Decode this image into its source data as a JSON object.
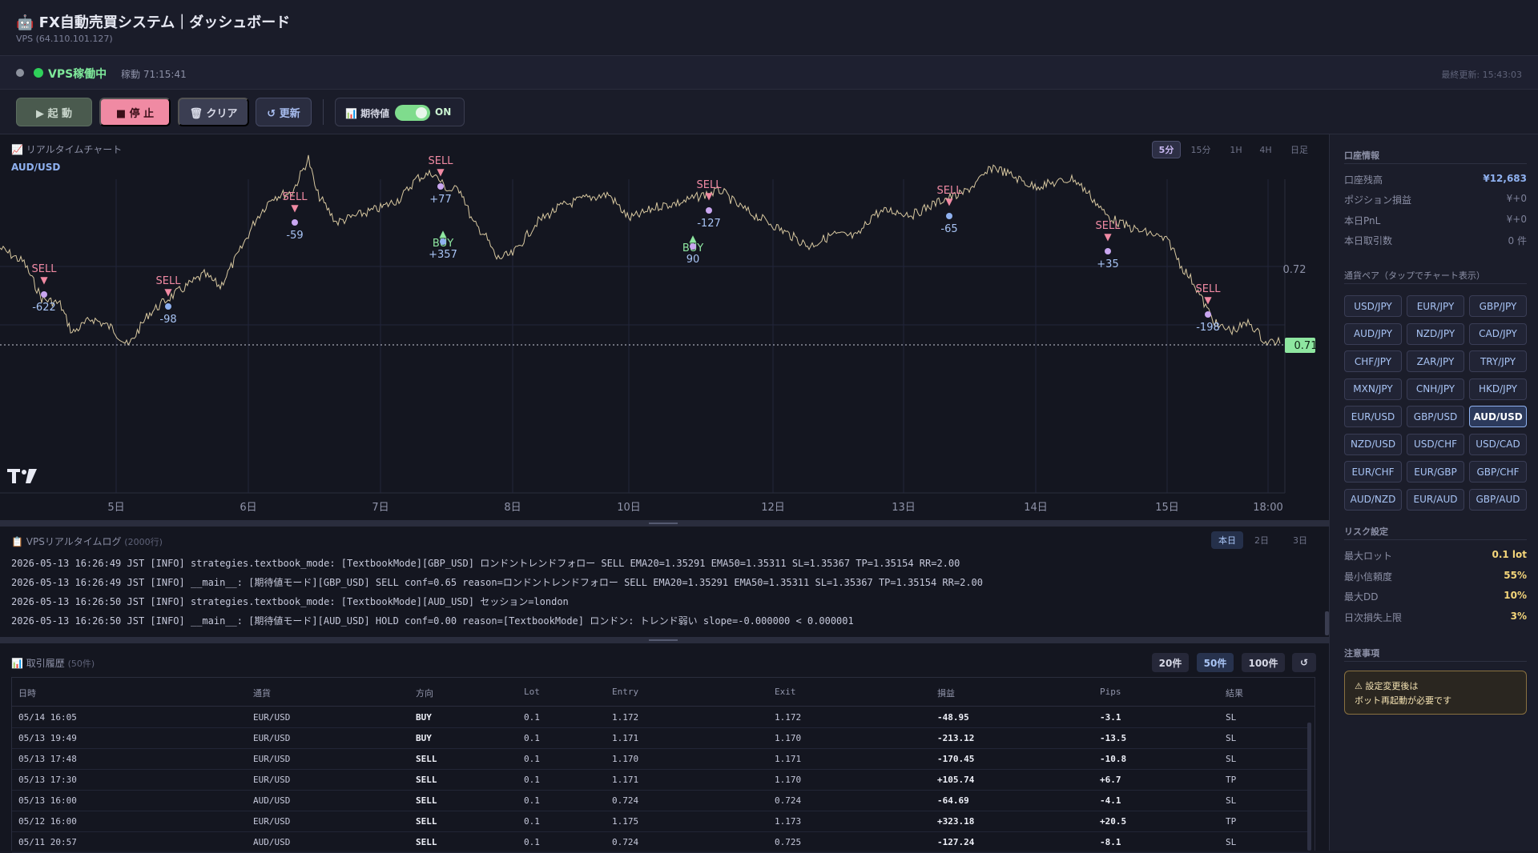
{
  "header": {
    "title": "🤖 FX自動売買システム｜ダッシュボード",
    "subtitle": "VPS (64.110.101.127)"
  },
  "status": {
    "vps_label": "VPS稼働中",
    "uptime": "稼動 71:15:41",
    "last_updated": "最終更新: 15:43:03"
  },
  "toolbar": {
    "start_label": "▶ 起 動",
    "stop_label": "■ 停 止",
    "clear_label": "🗑 クリア",
    "refresh_label": "↺ 更新",
    "ev_label": "📊 期待値",
    "ev_state": "ON"
  },
  "chart": {
    "title": "📈 リアルタイムチャート",
    "symbol": "AUD/USD",
    "timeframes": [
      "5分",
      "15分",
      "1H",
      "4H",
      "日足"
    ],
    "active_timeframe": "5分",
    "price_labels": [
      "0.72"
    ],
    "current_price": "0.71",
    "x_ticks": [
      "5日",
      "6日",
      "7日",
      "8日",
      "10日",
      "12日",
      "13日",
      "14日",
      "15日",
      "18:00"
    ],
    "markers": [
      {
        "kind": "SELL",
        "pnl": "-622"
      },
      {
        "kind": "SELL",
        "pnl": "-98"
      },
      {
        "kind": "SELL",
        "pnl": "-59"
      },
      {
        "kind": "SELL",
        "pnl": "+77"
      },
      {
        "kind": "BUY",
        "pnl": "+357"
      },
      {
        "kind": "BUY",
        "pnl": "90"
      },
      {
        "kind": "SELL",
        "pnl": "-127"
      },
      {
        "kind": "SELL",
        "pnl": "-65"
      },
      {
        "kind": "SELL",
        "pnl": "+35"
      },
      {
        "kind": "SELL",
        "pnl": "-198"
      }
    ],
    "colors": {
      "up": "#d8c8a0",
      "down": "#e893b0",
      "sell": "#f08aa3",
      "buy": "#8ee6a0",
      "price_tag": "#8ee6a0"
    }
  },
  "log": {
    "title": "📋 VPSリアルタイムログ",
    "count": "(2000行)",
    "ranges": [
      "本日",
      "2日",
      "3日"
    ],
    "active_range": "本日",
    "lines": [
      "2026-05-13 16:26:49 JST [INFO] strategies.textbook_mode: [TextbookMode][GBP_USD] ロンドントレンドフォロー SELL EMA20=1.35291 EMA50=1.35311 SL=1.35367 TP=1.35154 RR=2.00",
      "2026-05-13 16:26:49 JST [INFO] __main__: [期待値モード][GBP_USD] SELL conf=0.65 reason=ロンドントレンドフォロー SELL EMA20=1.35291 EMA50=1.35311 SL=1.35367 TP=1.35154 RR=2.00",
      "2026-05-13 16:26:50 JST [INFO] strategies.textbook_mode: [TextbookMode][AUD_USD] セッション=london",
      "2026-05-13 16:26:50 JST [INFO] __main__: [期待値モード][AUD_USD] HOLD conf=0.00 reason=[TextbookMode] ロンドン: トレンド弱い slope=-0.000000 < 0.000001"
    ]
  },
  "history": {
    "title": "📊 取引履歴",
    "count": "(50件)",
    "limits": [
      "20件",
      "50件",
      "100件",
      "↺"
    ],
    "active_limit": "50件",
    "columns": [
      "日時",
      "通貨",
      "方向",
      "Lot",
      "Entry",
      "Exit",
      "損益",
      "Pips",
      "結果"
    ],
    "rows": [
      [
        "05/14 16:05",
        "EUR/USD",
        "BUY",
        "0.1",
        "1.172",
        "1.172",
        "-48.95",
        "-3.1",
        "SL"
      ],
      [
        "05/13 19:49",
        "EUR/USD",
        "BUY",
        "0.1",
        "1.171",
        "1.170",
        "-213.12",
        "-13.5",
        "SL"
      ],
      [
        "05/13 17:48",
        "EUR/USD",
        "SELL",
        "0.1",
        "1.170",
        "1.171",
        "-170.45",
        "-10.8",
        "SL"
      ],
      [
        "05/13 17:30",
        "EUR/USD",
        "SELL",
        "0.1",
        "1.171",
        "1.170",
        "+105.74",
        "+6.7",
        "TP"
      ],
      [
        "05/13 16:00",
        "AUD/USD",
        "SELL",
        "0.1",
        "0.724",
        "0.724",
        "-64.69",
        "-4.1",
        "SL"
      ],
      [
        "05/12 16:00",
        "EUR/USD",
        "SELL",
        "0.1",
        "1.175",
        "1.173",
        "+323.18",
        "+20.5",
        "TP"
      ],
      [
        "05/11 20:57",
        "AUD/USD",
        "SELL",
        "0.1",
        "0.724",
        "0.725",
        "-127.24",
        "-8.1",
        "SL"
      ]
    ]
  },
  "sidebar": {
    "account_title": "口座情報",
    "account": [
      {
        "k": "口座残高",
        "v": "¥12,683"
      },
      {
        "k": "ポジション損益",
        "v": "¥+0"
      },
      {
        "k": "本日PnL",
        "v": "¥+0"
      },
      {
        "k": "本日取引数",
        "v": "0 件"
      }
    ],
    "pairs_title": "通貨ペア（タップでチャート表示）",
    "pairs": [
      "USD/JPY",
      "EUR/JPY",
      "GBP/JPY",
      "AUD/JPY",
      "NZD/JPY",
      "CAD/JPY",
      "CHF/JPY",
      "ZAR/JPY",
      "TRY/JPY",
      "MXN/JPY",
      "CNH/JPY",
      "HKD/JPY",
      "EUR/USD",
      "GBP/USD",
      "AUD/USD",
      "NZD/USD",
      "USD/CHF",
      "USD/CAD",
      "EUR/CHF",
      "EUR/GBP",
      "GBP/CHF",
      "AUD/NZD",
      "EUR/AUD",
      "GBP/AUD"
    ],
    "active_pair": "AUD/USD",
    "risk_title": "リスク設定",
    "risk": [
      {
        "k": "最大ロット",
        "v": "0.1 lot"
      },
      {
        "k": "最小信頼度",
        "v": "55%"
      },
      {
        "k": "最大DD",
        "v": "10%"
      },
      {
        "k": "日次損失上限",
        "v": "3%"
      }
    ],
    "notice_title": "注意事項",
    "notice_line1": "⚠ 設定変更後は",
    "notice_line2": "ボット再起動が必要です"
  }
}
